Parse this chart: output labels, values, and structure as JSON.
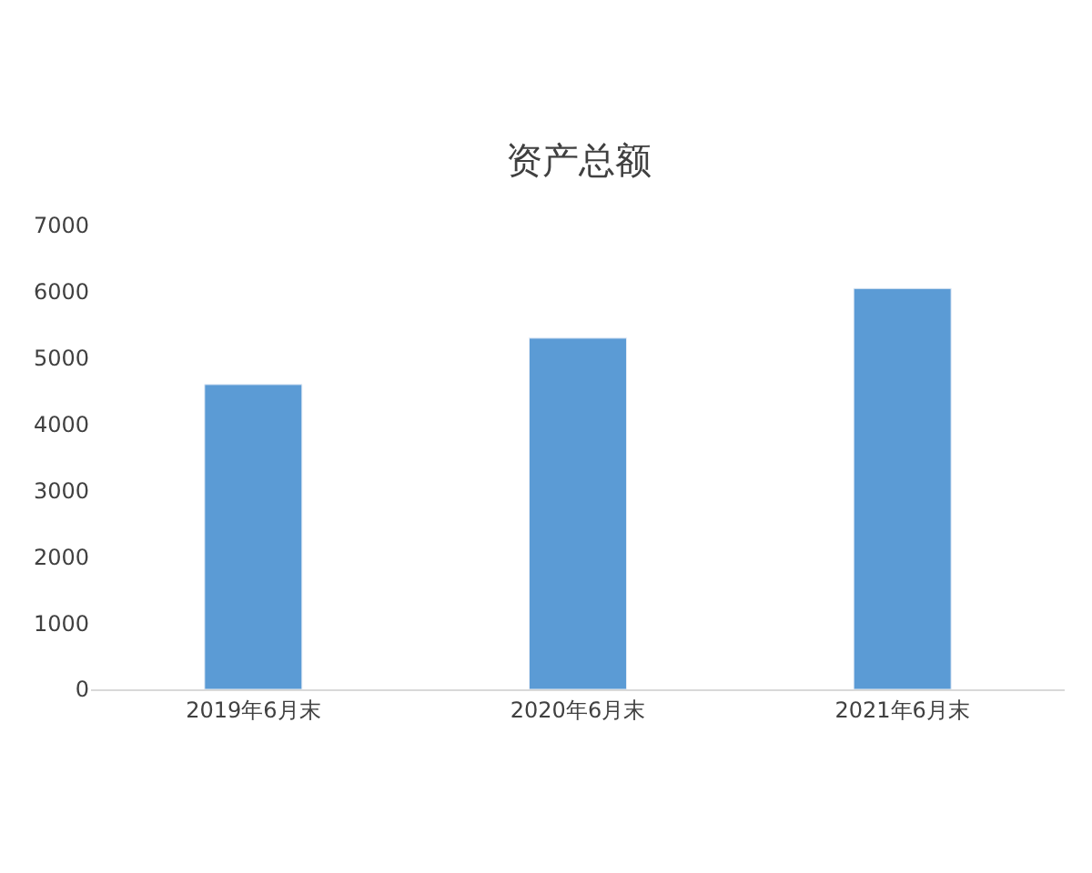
{
  "chart_data": {
    "type": "bar",
    "title": "资产总额",
    "categories": [
      "2019年6月末",
      "2020年6月末",
      "2021年6月末"
    ],
    "values": [
      4600,
      5300,
      6050
    ],
    "color": "#5b9bd5",
    "ylim": [
      0,
      7000
    ],
    "yticks": [
      0,
      1000,
      2000,
      3000,
      4000,
      5000,
      6000,
      7000
    ]
  }
}
